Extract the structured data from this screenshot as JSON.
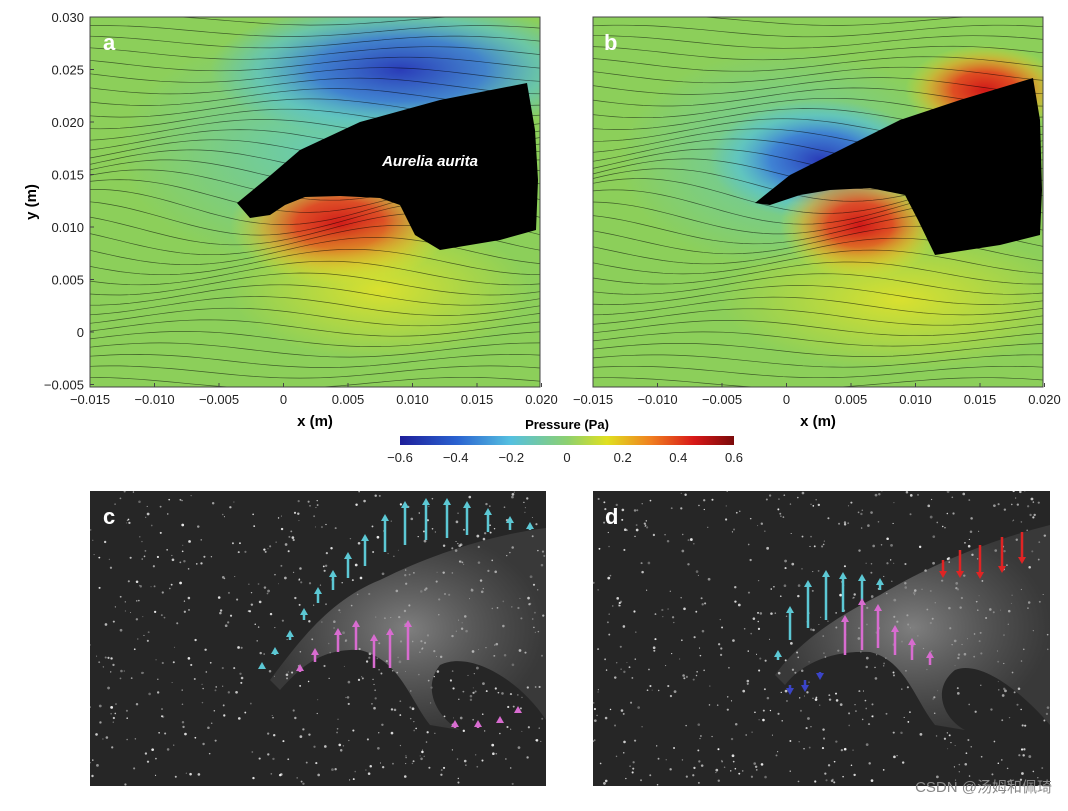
{
  "panels": [
    {
      "label": "a",
      "annotation": "Aurelia aurita"
    },
    {
      "label": "b"
    },
    {
      "label": "c"
    },
    {
      "label": "d"
    }
  ],
  "axes": {
    "x_label": "x (m)",
    "y_label": "y (m)",
    "xticks": [
      "−0.015",
      "−0.010",
      "−0.005",
      "0",
      "0.005",
      "0.010",
      "0.015",
      "0.020"
    ],
    "yticks": [
      "0.030",
      "0.025",
      "0.020",
      "0.015",
      "0.010",
      "0.005",
      "0",
      "−0.005"
    ]
  },
  "colorbar": {
    "title": "Pressure (Pa)",
    "ticks": [
      "−0.6",
      "−0.4",
      "−0.2",
      "0",
      "0.2",
      "0.4",
      "0.6"
    ]
  },
  "watermark": "CSDN @汤姆和佩琦"
}
